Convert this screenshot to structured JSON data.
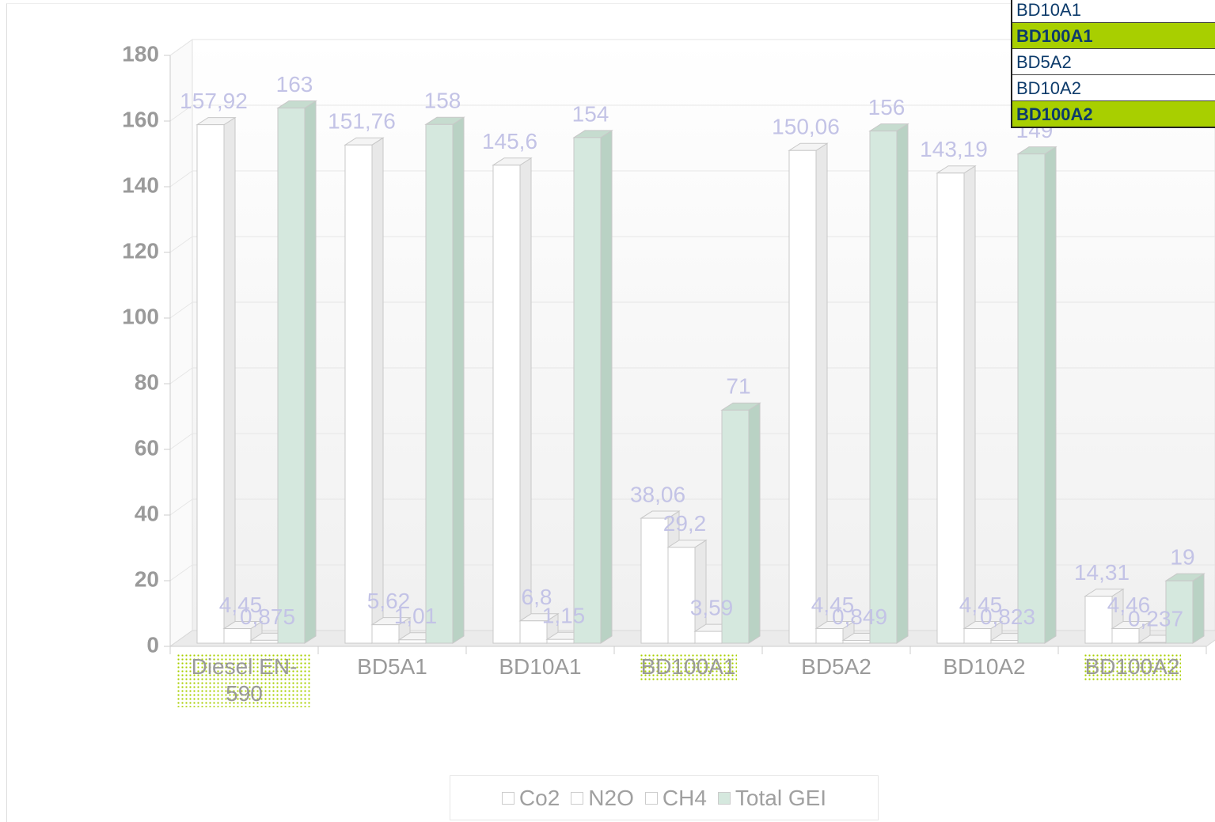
{
  "chart_data": {
    "type": "bar3d",
    "categories": [
      "Diesel EN-590",
      "BD5A1",
      "BD10A1",
      "BD100A1",
      "BD5A2",
      "BD10A2",
      "BD100A2"
    ],
    "highlighted_categories": [
      true,
      false,
      false,
      true,
      false,
      false,
      true
    ],
    "highlight_color": "#a8cf00",
    "series": [
      {
        "name": "Co2",
        "color": "#ffffff",
        "values": [
          157.92,
          151.76,
          145.6,
          38.06,
          150.06,
          143.19,
          14.31
        ],
        "value_labels": [
          "157,92",
          "151,76",
          "145,6",
          "38,06",
          "150,06",
          "143,19",
          "14,31"
        ]
      },
      {
        "name": "N2O",
        "color": "#ffffff",
        "values": [
          4.45,
          5.62,
          6.8,
          29.2,
          4.45,
          4.45,
          4.46
        ],
        "value_labels": [
          "4,45",
          "5,62",
          "6,8",
          "29,2",
          "4,45",
          "4,45",
          "4,46"
        ]
      },
      {
        "name": "CH4",
        "color": "#ffffff",
        "values": [
          0.875,
          1.01,
          1.15,
          3.59,
          0.849,
          0.823,
          0.237
        ],
        "value_labels": [
          "0,875",
          "1,01",
          "1,15",
          "3,59",
          "0,849",
          "0,823",
          "0,237"
        ]
      },
      {
        "name": "Total GEI",
        "color": "#d5e8de",
        "values": [
          163,
          158,
          154,
          71,
          156,
          149,
          19
        ],
        "value_labels": [
          "163",
          "158",
          "154",
          "71",
          "156",
          "149",
          "19"
        ]
      }
    ],
    "ylim": [
      0,
      180
    ],
    "yticks": [
      0,
      20,
      40,
      60,
      80,
      100,
      120,
      140,
      160,
      180
    ],
    "grid": true
  },
  "dropdown": {
    "items": [
      "BD10A1",
      "BD100A1",
      "BD5A2",
      "BD10A2",
      "BD100A2"
    ],
    "highlighted": [
      false,
      true,
      false,
      false,
      true
    ]
  }
}
